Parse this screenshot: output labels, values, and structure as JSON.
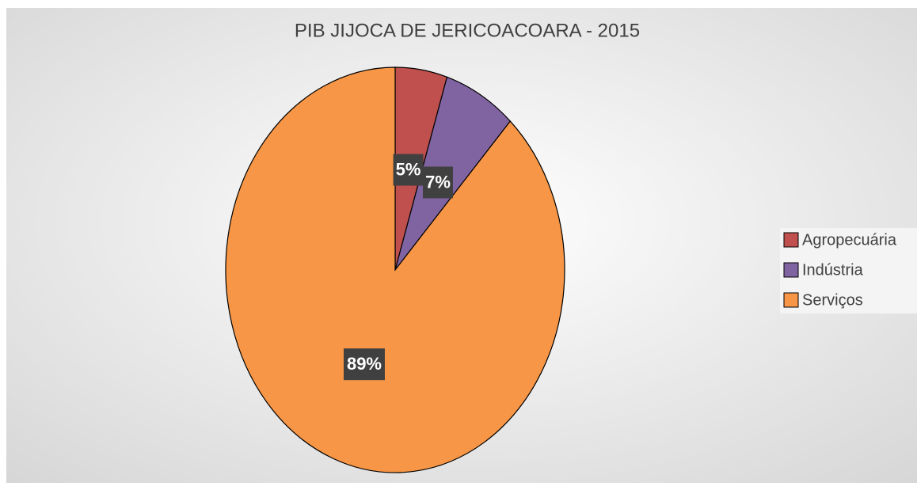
{
  "chart_data": {
    "type": "pie",
    "title": "PIB JIJOCA DE JERICOACOARA - 2015",
    "categories": [
      "Agropecuária",
      "Indústria",
      "Serviços"
    ],
    "values": [
      5,
      7,
      89
    ],
    "value_labels": [
      "5%",
      "7%",
      "89%"
    ],
    "colors": [
      "#c0504d",
      "#8064a2",
      "#f79646"
    ],
    "legend": "right"
  }
}
